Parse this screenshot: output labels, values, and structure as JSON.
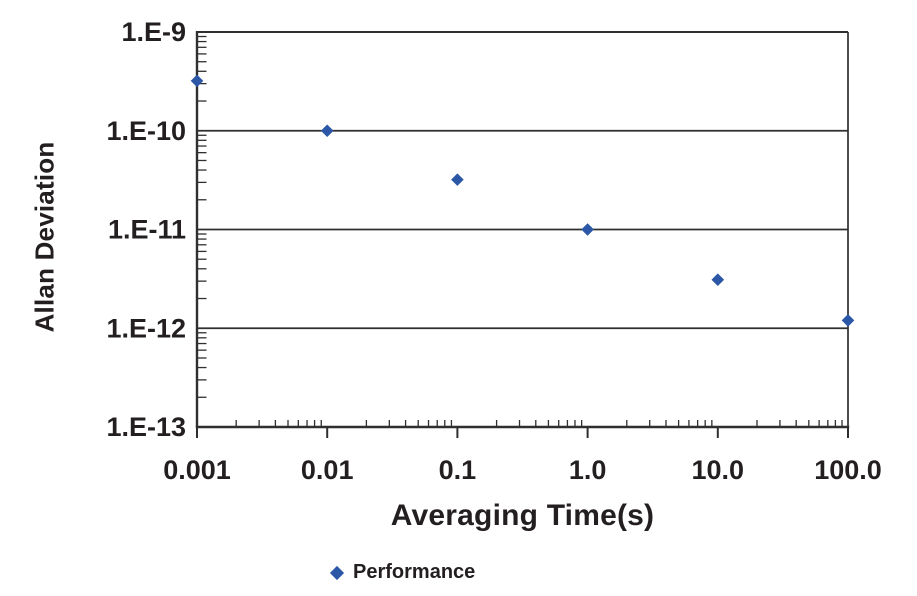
{
  "colors": {
    "accent": "#2b57a6",
    "text": "#231f20",
    "line": "#2f2f2f"
  },
  "chart_data": {
    "type": "scatter",
    "title": "",
    "xlabel": "Averaging Time(s)",
    "ylabel": "Allan Deviation",
    "x_scale": "log",
    "y_scale": "log",
    "xlim": [
      0.001,
      100
    ],
    "ylim": [
      1e-13,
      1e-09
    ],
    "grid": "horizontal",
    "legend_position": "bottom",
    "x_tick_values": [
      0.001,
      0.01,
      0.1,
      1,
      10,
      100
    ],
    "x_tick_labels": [
      "0.001",
      "0.01",
      "0.1",
      "1.0",
      "10.0",
      "100.0"
    ],
    "y_tick_values": [
      1e-09,
      1e-10,
      1e-11,
      1e-12,
      1e-13
    ],
    "y_tick_labels": [
      "1.E-9",
      "1.E-10",
      "1.E-11",
      "1.E-12",
      "1.E-13"
    ],
    "series": [
      {
        "name": "Performance",
        "marker": "diamond",
        "color": "#2b57a6",
        "points": [
          [
            0.001,
            3.2e-10
          ],
          [
            0.01,
            1e-10
          ],
          [
            0.1,
            3.2e-11
          ],
          [
            1.0,
            1e-11
          ],
          [
            10.0,
            3.1e-12
          ],
          [
            100.0,
            1.2e-12
          ]
        ]
      }
    ]
  }
}
